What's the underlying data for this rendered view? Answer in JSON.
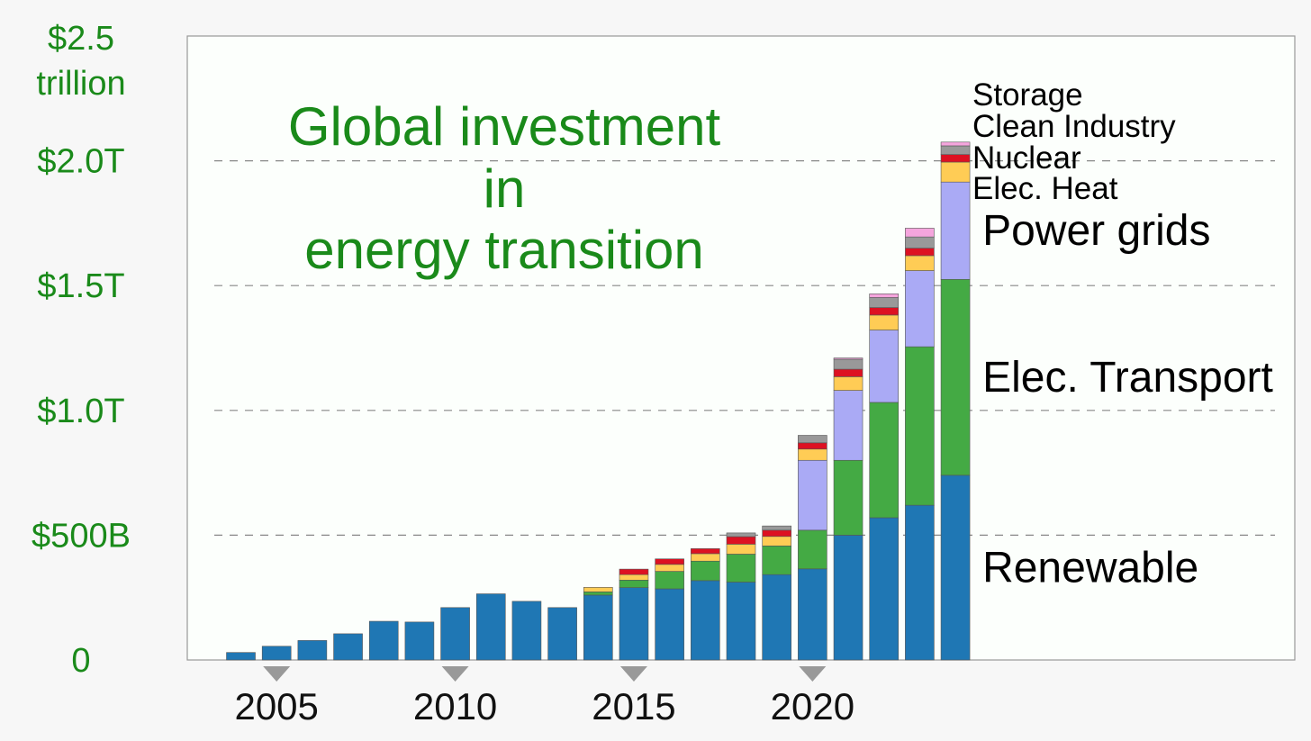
{
  "chart_data": {
    "type": "bar",
    "stacked": true,
    "title_lines": [
      "Global investment",
      "in",
      "energy transition"
    ],
    "y_ticks": [
      {
        "value": 0,
        "lines": [
          "0"
        ]
      },
      {
        "value": 500,
        "lines": [
          "$500B"
        ]
      },
      {
        "value": 1000,
        "lines": [
          "$1.0T"
        ]
      },
      {
        "value": 1500,
        "lines": [
          "$1.5T"
        ]
      },
      {
        "value": 2000,
        "lines": [
          "$2.0T"
        ]
      },
      {
        "value": 2500,
        "lines": [
          "$2.5",
          "trillion"
        ]
      }
    ],
    "ylim": [
      0,
      2500
    ],
    "xlim": [
      2003,
      2033
    ],
    "x_ticks": [
      {
        "value": 2005,
        "label": "2005"
      },
      {
        "value": 2010,
        "label": "2010"
      },
      {
        "value": 2015,
        "label": "2015"
      },
      {
        "value": 2020,
        "label": "2020"
      }
    ],
    "grid": "horizontal dashed",
    "legend": "right, labels beside last bar",
    "categories": [
      2004,
      2005,
      2006,
      2007,
      2008,
      2009,
      2010,
      2011,
      2012,
      2013,
      2014,
      2015,
      2016,
      2017,
      2018,
      2019,
      2020,
      2021,
      2022,
      2023,
      2024
    ],
    "series": [
      {
        "name": "Renewable",
        "color": "#1f77b4",
        "values": [
          30,
          55,
          78,
          105,
          155,
          152,
          210,
          265,
          235,
          210,
          260,
          290,
          285,
          318,
          312,
          342,
          365,
          500,
          570,
          620,
          740
        ]
      },
      {
        "name": "Elec. Transport",
        "color": "#44aa44",
        "values": [
          0,
          0,
          0,
          0,
          0,
          0,
          0,
          0,
          0,
          0,
          13,
          30,
          70,
          78,
          112,
          115,
          155,
          300,
          462,
          635,
          785
        ]
      },
      {
        "name": "Power grids",
        "color": "#aaaaf5",
        "values": [
          0,
          0,
          0,
          0,
          0,
          0,
          0,
          0,
          0,
          0,
          0,
          0,
          0,
          0,
          0,
          0,
          280,
          280,
          290,
          305,
          390
        ]
      },
      {
        "name": "Elec. Heat",
        "color": "#ffcc55",
        "values": [
          0,
          0,
          0,
          0,
          0,
          0,
          0,
          0,
          0,
          0,
          18,
          22,
          28,
          30,
          40,
          38,
          45,
          55,
          60,
          60,
          80
        ]
      },
      {
        "name": "Nuclear",
        "color": "#dd1122",
        "values": [
          0,
          0,
          0,
          0,
          0,
          0,
          0,
          0,
          0,
          0,
          0,
          22,
          22,
          20,
          30,
          25,
          25,
          30,
          30,
          30,
          30
        ]
      },
      {
        "name": "Clean Industry",
        "color": "#999999",
        "values": [
          0,
          0,
          0,
          0,
          0,
          0,
          0,
          0,
          0,
          0,
          0,
          0,
          0,
          0,
          15,
          17,
          30,
          40,
          40,
          45,
          35
        ]
      },
      {
        "name": "Storage",
        "color": "#f5a5dd",
        "values": [
          0,
          0,
          0,
          0,
          0,
          0,
          0,
          0,
          0,
          0,
          0,
          0,
          0,
          0,
          0,
          0,
          0,
          5,
          15,
          35,
          15
        ]
      }
    ],
    "series_labels": {
      "big": [
        "Power grids",
        "Elec. Transport",
        "Renewable"
      ],
      "small": [
        "Storage",
        "Clean Industry",
        "Nuclear",
        "Elec. Heat"
      ]
    }
  }
}
